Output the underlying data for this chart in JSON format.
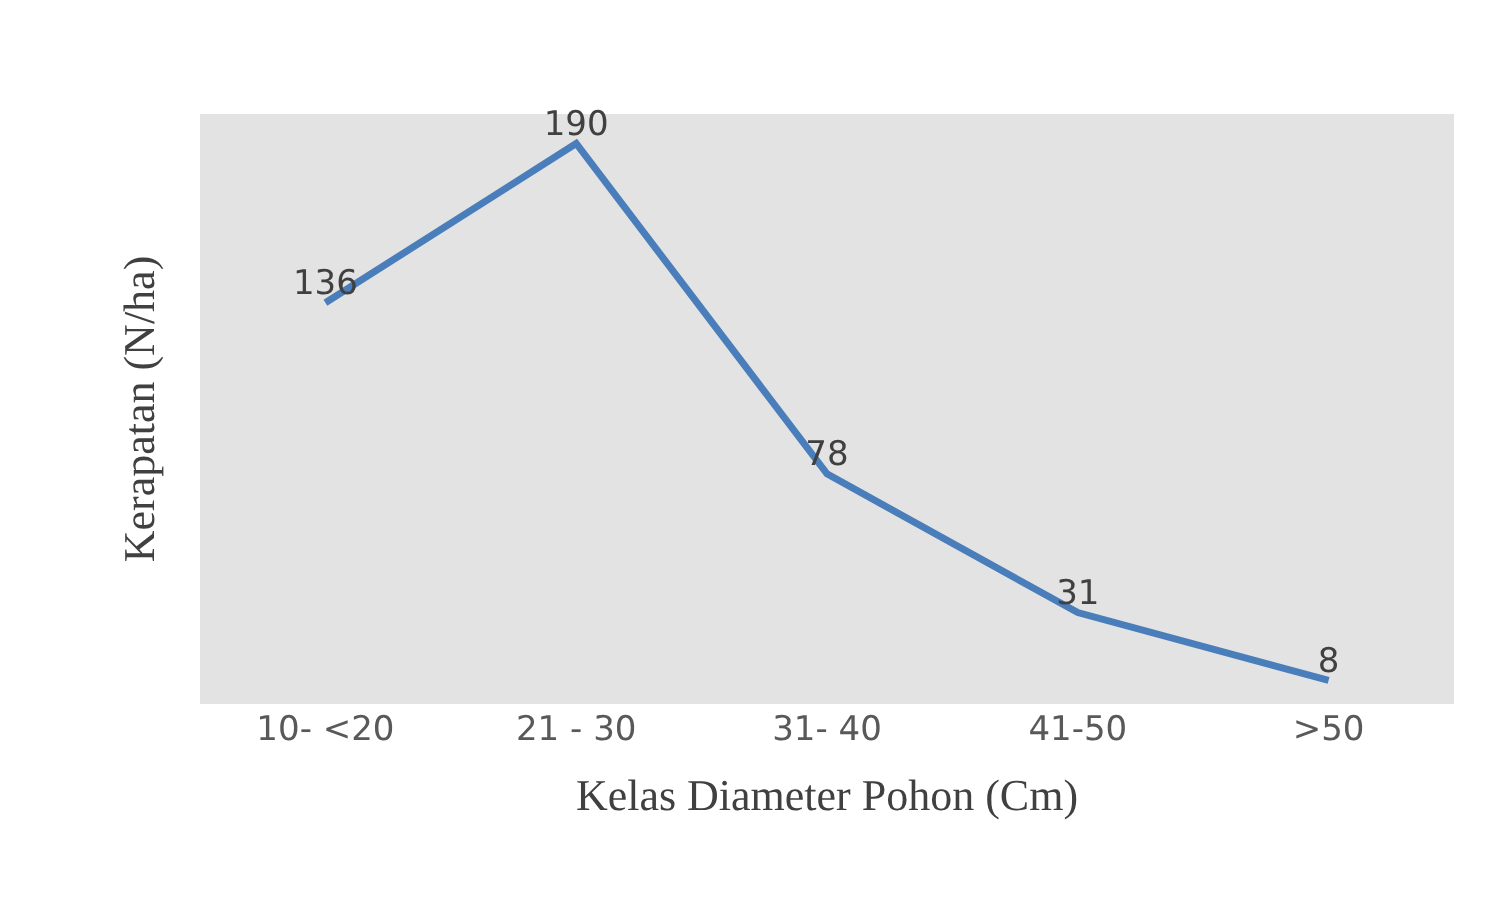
{
  "chart_data": {
    "type": "line",
    "xlabel": "Kelas Diameter Pohon (Cm)",
    "ylabel": "Kerapatan (N/ha)",
    "categories": [
      "10- <20",
      "21 - 30",
      "31- 40",
      "41-50",
      ">50"
    ],
    "series": [
      {
        "color": "#4a7ebb",
        "values": [
          136,
          190,
          78,
          31,
          8
        ]
      }
    ],
    "data_labels": true,
    "tick_labels": "x",
    "grid": false,
    "marker": "none",
    "line_style": "solid"
  }
}
